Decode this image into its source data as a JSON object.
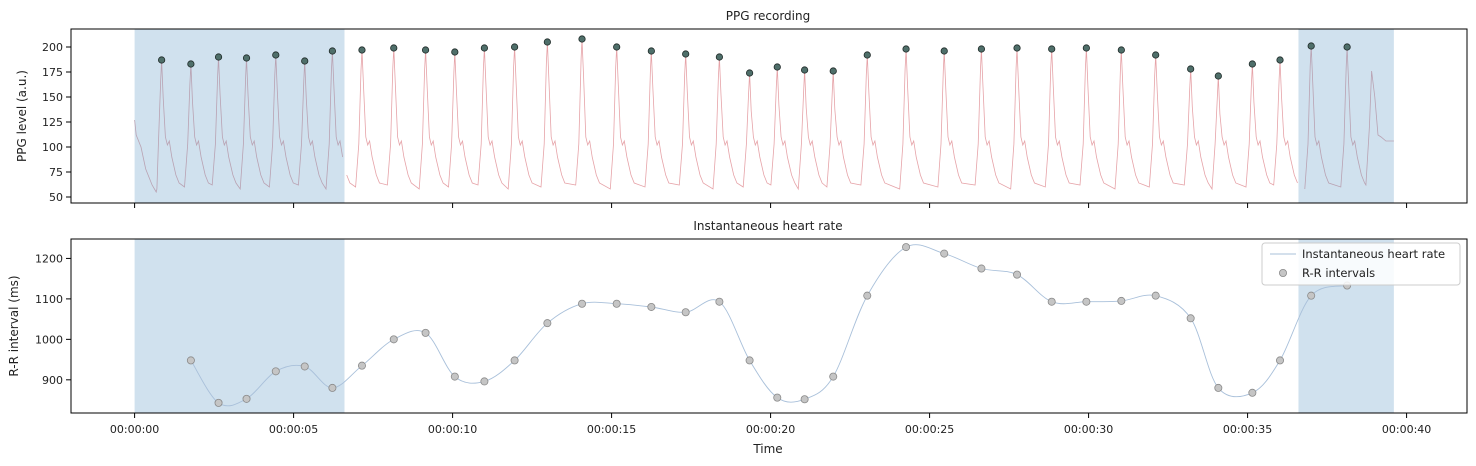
{
  "chart_data": [
    {
      "type": "line",
      "title": "PPG recording",
      "xlabel": "",
      "ylabel": "PPG level (a.u.)",
      "xlim": [
        -2.0,
        41.9
      ],
      "ylim": [
        44,
        218
      ],
      "yticks": [
        50,
        75,
        100,
        125,
        150,
        175,
        200
      ],
      "xticks": [
        0,
        5,
        10,
        15,
        20,
        25,
        30,
        35,
        40
      ],
      "xtick_labels": [
        "",
        "",
        "",
        "",
        "",
        "",
        "",
        "",
        ""
      ],
      "shaded_regions": [
        [
          0.0,
          6.6
        ],
        [
          36.6,
          39.6
        ]
      ],
      "colors": {
        "signal": "#e6a3a8",
        "signal_shaded": "#b9a2b2",
        "peak_fill": "#4f6f6a",
        "shade": "#d0e1ee"
      },
      "series": [
        {
          "type": "line",
          "values": {
            "peak_times": [
              0.85,
              1.77,
              2.64,
              3.52,
              4.44,
              5.35,
              6.22,
              7.15,
              8.15,
              9.15,
              10.07,
              11.0,
              11.95,
              12.98,
              14.07,
              15.16,
              16.25,
              17.33,
              18.39,
              19.34,
              20.21,
              21.07,
              21.97,
              23.04,
              24.26,
              25.46,
              26.63,
              27.75,
              28.84,
              29.93,
              31.03,
              32.11,
              33.21,
              34.08,
              35.15,
              36.02,
              37.0,
              38.13
            ],
            "baseline": 58,
            "dicrotic": 100,
            "start_value": 127,
            "end_value": 106,
            "end_time": 39.6
          }
        },
        {
          "type": "scatter",
          "x": [
            0.85,
            1.77,
            2.64,
            3.52,
            4.44,
            5.35,
            6.22,
            7.15,
            8.15,
            9.15,
            10.07,
            11.0,
            11.95,
            12.98,
            14.07,
            15.16,
            16.25,
            17.33,
            18.39,
            19.34,
            20.21,
            21.07,
            21.97,
            23.04,
            24.26,
            25.46,
            26.63,
            27.75,
            28.84,
            29.93,
            31.03,
            32.11,
            33.21,
            34.08,
            35.15,
            36.02,
            37.0,
            38.13
          ],
          "y": [
            187,
            183,
            190,
            189,
            192,
            186,
            196,
            197,
            199,
            197,
            195,
            199,
            200,
            205,
            208,
            200,
            196,
            193,
            190,
            174,
            180,
            177,
            176,
            192,
            198,
            196,
            198,
            199,
            198,
            199,
            197,
            192,
            178,
            171,
            183,
            187,
            201,
            200
          ]
        }
      ]
    },
    {
      "type": "line",
      "title": "Instantaneous heart rate",
      "xlabel": "Time",
      "ylabel": "R-R interval (ms)",
      "xlim": [
        -2.0,
        41.9
      ],
      "ylim": [
        818,
        1248
      ],
      "yticks": [
        900,
        1000,
        1100,
        1200
      ],
      "xticks": [
        0,
        5,
        10,
        15,
        20,
        25,
        30,
        35,
        40
      ],
      "xtick_labels": [
        "00:00:00",
        "00:00:05",
        "00:00:10",
        "00:00:15",
        "00:00:20",
        "00:00:25",
        "00:00:30",
        "00:00:35",
        "00:00:40"
      ],
      "shaded_regions": [
        [
          0.0,
          6.6
        ],
        [
          36.6,
          39.6
        ]
      ],
      "colors": {
        "line": "#a9c0da",
        "marker_fill": "#c5c5c5",
        "marker_edge": "#8a8a8a",
        "shade": "#d0e1ee"
      },
      "legend": {
        "position": "top-right",
        "entries": [
          "Instantaneous heart rate",
          "R-R intervals"
        ]
      },
      "series": [
        {
          "name": "Instantaneous heart rate",
          "type": "line",
          "x": [
            1.77,
            2.64,
            3.52,
            4.44,
            5.35,
            6.22,
            7.15,
            8.15,
            9.15,
            10.07,
            11.0,
            11.95,
            12.98,
            14.07,
            15.16,
            16.25,
            17.33,
            18.39,
            19.34,
            20.21,
            21.07,
            21.97,
            23.04,
            24.26,
            25.46,
            26.63,
            27.75,
            28.84,
            29.93,
            31.03,
            32.11,
            33.21,
            34.08,
            35.15,
            36.02,
            37.0,
            38.13
          ],
          "values": [
            948,
            843,
            853,
            921,
            933,
            880,
            935,
            1000,
            1016,
            908,
            896,
            948,
            1040,
            1088,
            1088,
            1080,
            1067,
            1093,
            948,
            856,
            852,
            908,
            1108,
            1228,
            1212,
            1175,
            1160,
            1093,
            1093,
            1095,
            1108,
            1052,
            880,
            868,
            948,
            1108,
            1133
          ]
        },
        {
          "name": "R-R intervals",
          "type": "scatter",
          "x": [
            1.77,
            2.64,
            3.52,
            4.44,
            5.35,
            6.22,
            7.15,
            8.15,
            9.15,
            10.07,
            11.0,
            11.95,
            12.98,
            14.07,
            15.16,
            16.25,
            17.33,
            18.39,
            19.34,
            20.21,
            21.07,
            21.97,
            23.04,
            24.26,
            25.46,
            26.63,
            27.75,
            28.84,
            29.93,
            31.03,
            32.11,
            33.21,
            34.08,
            35.15,
            36.02,
            37.0,
            38.13
          ],
          "values": [
            948,
            843,
            853,
            921,
            933,
            880,
            935,
            1000,
            1016,
            908,
            896,
            948,
            1040,
            1088,
            1088,
            1080,
            1067,
            1093,
            948,
            856,
            852,
            908,
            1108,
            1228,
            1212,
            1175,
            1160,
            1093,
            1093,
            1095,
            1108,
            1052,
            880,
            868,
            948,
            1108,
            1133
          ]
        }
      ]
    }
  ]
}
